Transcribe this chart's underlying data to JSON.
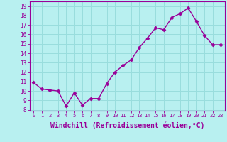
{
  "x": [
    0,
    1,
    2,
    3,
    4,
    5,
    6,
    7,
    8,
    9,
    10,
    11,
    12,
    13,
    14,
    15,
    16,
    17,
    18,
    19,
    20,
    21,
    22,
    23
  ],
  "y": [
    10.9,
    10.2,
    10.1,
    10.0,
    8.4,
    9.8,
    8.5,
    9.2,
    9.2,
    10.8,
    12.0,
    12.7,
    13.3,
    14.6,
    15.6,
    16.7,
    16.5,
    17.8,
    18.2,
    18.8,
    17.4,
    15.9,
    14.9,
    14.9
  ],
  "line_color": "#990099",
  "marker": "D",
  "marker_size": 2.5,
  "xlabel": "Windchill (Refroidissement éolien,°C)",
  "xlabel_fontsize": 7,
  "xtick_labels": [
    "0",
    "1",
    "2",
    "3",
    "4",
    "5",
    "6",
    "7",
    "8",
    "9",
    "10",
    "11",
    "12",
    "13",
    "14",
    "15",
    "16",
    "17",
    "18",
    "19",
    "20",
    "21",
    "22",
    "23"
  ],
  "ytick_labels": [
    "8",
    "9",
    "10",
    "11",
    "12",
    "13",
    "14",
    "15",
    "16",
    "17",
    "18",
    "19"
  ],
  "yticks": [
    8,
    9,
    10,
    11,
    12,
    13,
    14,
    15,
    16,
    17,
    18,
    19
  ],
  "ylim": [
    7.9,
    19.5
  ],
  "xlim": [
    -0.5,
    23.5
  ],
  "bg_color": "#b8f0f0",
  "grid_color": "#99dddd",
  "tick_color": "#990099",
  "label_color": "#990099",
  "spine_color": "#990099",
  "linewidth": 1.0
}
